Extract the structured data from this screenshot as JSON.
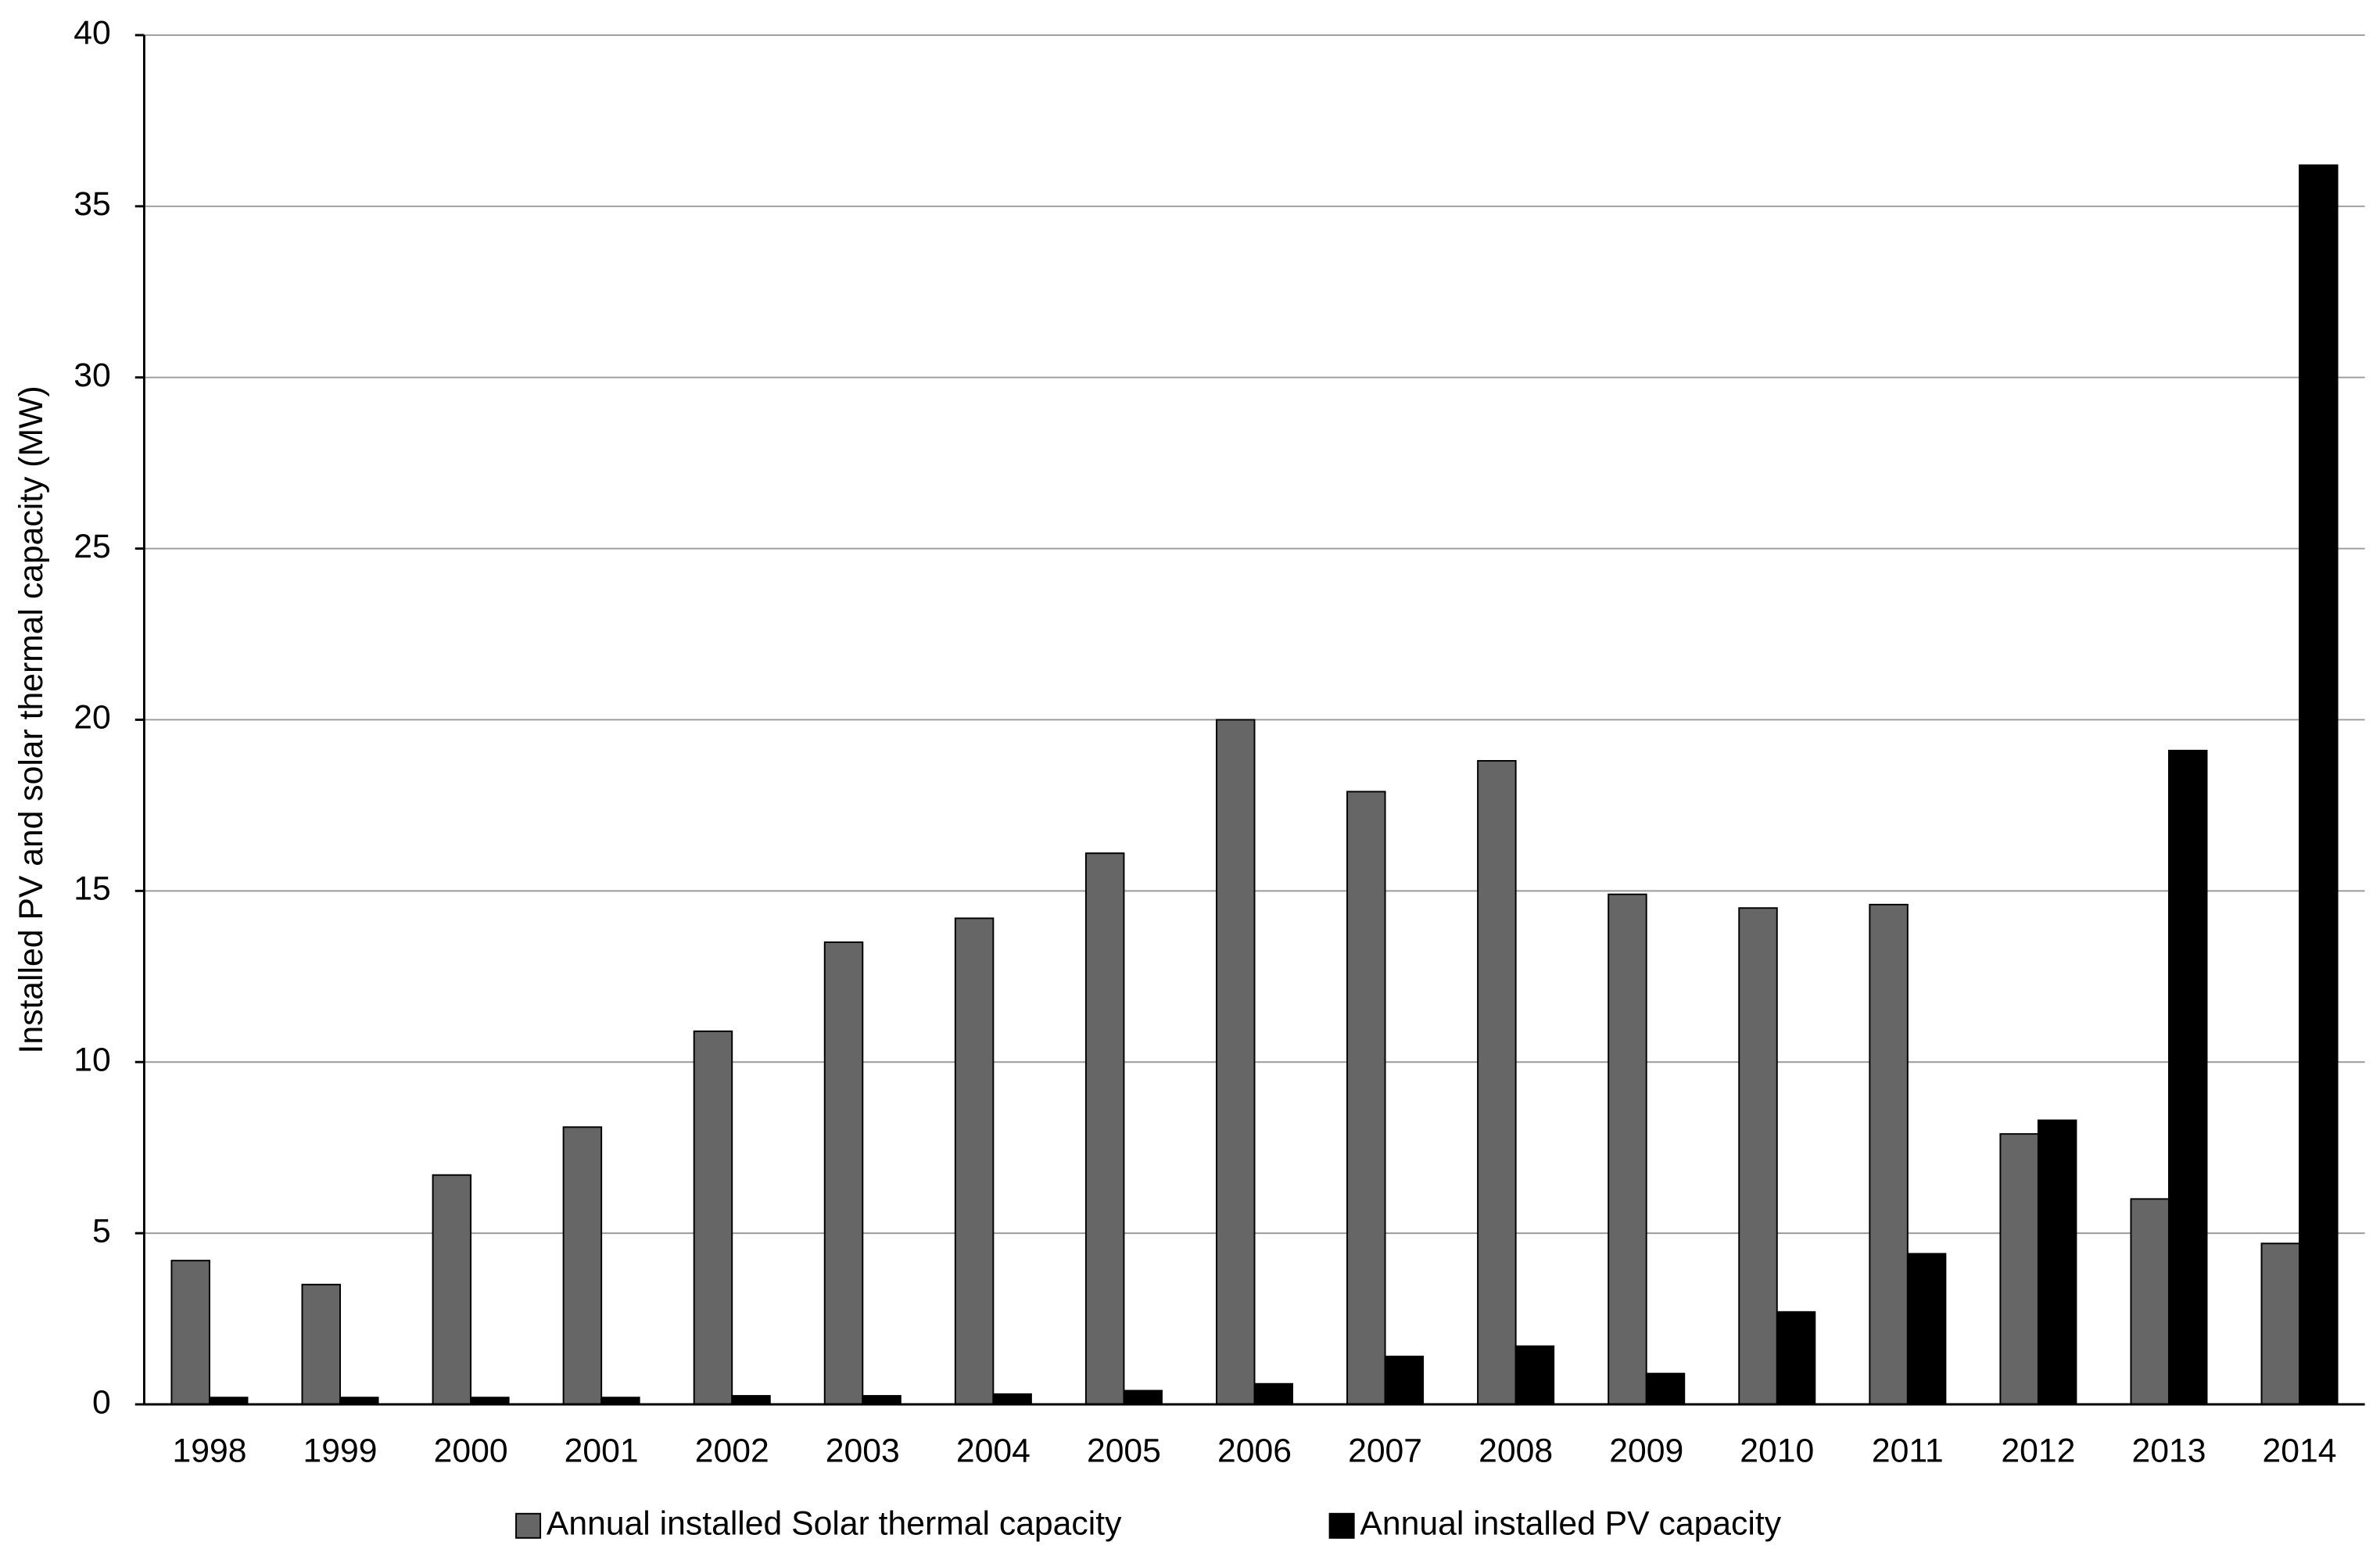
{
  "chart_data": {
    "type": "bar",
    "y_label": "Installed PV and solar thermal capacity (MW)",
    "categories": [
      "1998",
      "1999",
      "2000",
      "2001",
      "2002",
      "2003",
      "2004",
      "2005",
      "2006",
      "2007",
      "2008",
      "2009",
      "2010",
      "2011",
      "2012",
      "2013",
      "2014"
    ],
    "series": [
      {
        "name": "Annual installed Solar thermal capacity",
        "color": "#666666",
        "values": [
          4.2,
          3.5,
          6.7,
          8.1,
          10.9,
          13.5,
          14.2,
          16.1,
          20.0,
          17.9,
          18.8,
          14.9,
          14.5,
          14.6,
          7.9,
          6.0,
          4.7
        ]
      },
      {
        "name": "Annual installed PV capacity",
        "color": "#000000",
        "values": [
          0.2,
          0.2,
          0.2,
          0.2,
          0.25,
          0.25,
          0.3,
          0.4,
          0.6,
          1.4,
          1.7,
          0.9,
          2.7,
          4.4,
          8.3,
          19.1,
          36.2
        ]
      }
    ],
    "ylim": [
      0,
      40
    ],
    "yticks": [
      0,
      5,
      10,
      15,
      20,
      25,
      30,
      35,
      40
    ],
    "grid": true,
    "legend": "bottom"
  }
}
